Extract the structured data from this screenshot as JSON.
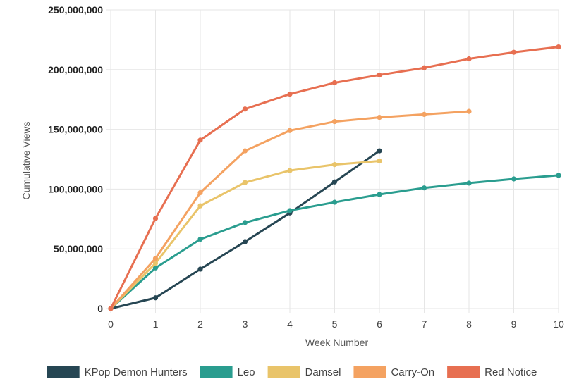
{
  "chart_data": {
    "type": "line",
    "title": "",
    "xlabel": "Week Number",
    "ylabel": "Cumulative Views",
    "xlim": [
      0,
      10
    ],
    "ylim": [
      0,
      250000000
    ],
    "x_ticks": [
      "0",
      "1",
      "2",
      "3",
      "4",
      "5",
      "6",
      "7",
      "8",
      "9",
      "10"
    ],
    "y_ticks": [
      {
        "value": 0,
        "label": "0"
      },
      {
        "value": 50000000,
        "label": "50,000,000"
      },
      {
        "value": 100000000,
        "label": "100,000,000"
      },
      {
        "value": 150000000,
        "label": "150,000,000"
      },
      {
        "value": 200000000,
        "label": "200,000,000"
      },
      {
        "value": 250000000,
        "label": "250,000,000"
      }
    ],
    "grid": true,
    "legend_position": "bottom",
    "series": [
      {
        "name": "KPop Demon Hunters",
        "color": "#264653",
        "x": [
          0,
          1,
          2,
          3,
          4,
          5,
          6
        ],
        "values": [
          0,
          9000000,
          33000000,
          56000000,
          80000000,
          106000000,
          132000000
        ]
      },
      {
        "name": "Leo",
        "color": "#2a9d8f",
        "x": [
          0,
          1,
          2,
          3,
          4,
          5,
          6,
          7,
          8,
          9,
          10
        ],
        "values": [
          0,
          34000000,
          58000000,
          72000000,
          82000000,
          89000000,
          95500000,
          101000000,
          105000000,
          108500000,
          111500000
        ]
      },
      {
        "name": "Damsel",
        "color": "#e9c46a",
        "x": [
          0,
          1,
          2,
          3,
          4,
          5,
          6
        ],
        "values": [
          0,
          38000000,
          86000000,
          105500000,
          115500000,
          120500000,
          123500000
        ]
      },
      {
        "name": "Carry-On",
        "color": "#f4a261",
        "x": [
          0,
          1,
          2,
          3,
          4,
          5,
          6,
          7,
          8
        ],
        "values": [
          0,
          42000000,
          97000000,
          132000000,
          149000000,
          156500000,
          160000000,
          162500000,
          165000000
        ]
      },
      {
        "name": "Red Notice",
        "color": "#e76f51",
        "x": [
          0,
          1,
          2,
          3,
          4,
          5,
          6,
          7,
          8,
          9,
          10
        ],
        "values": [
          0,
          75500000,
          141000000,
          167000000,
          179500000,
          189000000,
          195500000,
          201500000,
          209000000,
          214500000,
          219000000
        ]
      }
    ]
  }
}
